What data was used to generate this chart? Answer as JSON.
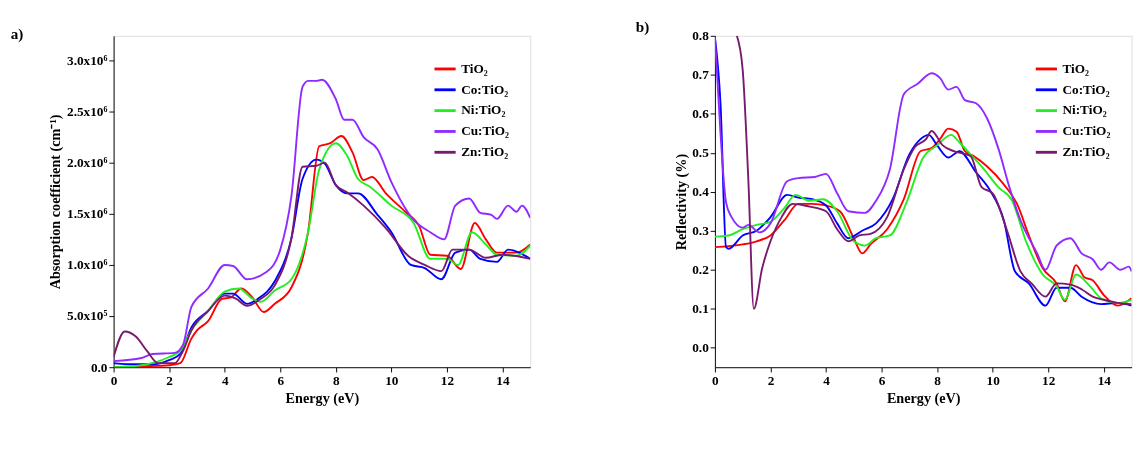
{
  "chart_data": [
    {
      "type": "line",
      "title": "a)",
      "xlabel": "Energy (eV)",
      "ylabel": "Absorption coefficient (cm⁻¹)",
      "xlim": [
        0,
        15
      ],
      "xticks": [
        0,
        2,
        4,
        6,
        8,
        10,
        12,
        14
      ],
      "ylim": [
        0,
        3240000
      ],
      "yticks": [
        {
          "value": 0,
          "label": "0.0"
        },
        {
          "value": 500000,
          "label": "5.0x10⁵"
        },
        {
          "value": 1000000,
          "label": "1.0x10⁶"
        },
        {
          "value": 1500000,
          "label": "1.5x10⁶"
        },
        {
          "value": 2000000,
          "label": "2.0x10⁶"
        },
        {
          "value": 2500000,
          "label": "2.5x10⁶"
        },
        {
          "value": 3000000,
          "label": "3.0x10⁶"
        }
      ],
      "grid": false,
      "legend": "top right",
      "line_style": "solid",
      "marker": "none",
      "series": [
        {
          "name": "TiO₂",
          "color": "#ff0000",
          "x": [
            0,
            1,
            2,
            2.4,
            2.8,
            3.0,
            3.4,
            3.9,
            4.2,
            4.6,
            5.0,
            5.4,
            5.8,
            6.4,
            7.0,
            7.4,
            7.8,
            8.2,
            8.6,
            9.0,
            9.3,
            9.8,
            10.5,
            11.0,
            11.4,
            12.0,
            12.5,
            13.0,
            13.4,
            13.8,
            14.5,
            15
          ],
          "values": [
            0,
            10000,
            20000,
            40000,
            280000,
            360000,
            450000,
            670000,
            680000,
            770000,
            680000,
            540000,
            620000,
            780000,
            1320000,
            2160000,
            2190000,
            2260000,
            2100000,
            1830000,
            1860000,
            1700000,
            1520000,
            1380000,
            1100000,
            1090000,
            960000,
            1410000,
            1250000,
            1120000,
            1120000,
            1200000
          ]
        },
        {
          "name": "Co:TiO₂",
          "color": "#0000ff",
          "x": [
            0,
            0.5,
            1.5,
            2.0,
            2.4,
            2.8,
            3.4,
            4.0,
            4.3,
            4.8,
            5.2,
            5.8,
            6.4,
            6.8,
            7.3,
            7.6,
            8.0,
            8.4,
            8.8,
            9.5,
            10.0,
            10.7,
            11.2,
            11.8,
            12.3,
            12.8,
            13.2,
            13.8,
            14.2,
            15
          ],
          "values": [
            40000,
            30000,
            30000,
            70000,
            130000,
            390000,
            550000,
            720000,
            720000,
            620000,
            670000,
            840000,
            1260000,
            1840000,
            2030000,
            1990000,
            1780000,
            1700000,
            1700000,
            1490000,
            1320000,
            1000000,
            970000,
            860000,
            1120000,
            1150000,
            1060000,
            1030000,
            1150000,
            1060000
          ]
        },
        {
          "name": "Ni:TiO₂",
          "color": "#22ee22",
          "x": [
            0,
            1,
            2,
            2.4,
            2.8,
            3.4,
            4.0,
            4.5,
            5.0,
            5.3,
            5.8,
            6.4,
            7.0,
            7.4,
            8.0,
            8.4,
            8.8,
            9.2,
            10.0,
            10.8,
            11.4,
            12.0,
            12.4,
            12.9,
            13.4,
            13.8,
            14.5,
            15
          ],
          "values": [
            0,
            20000,
            100000,
            160000,
            360000,
            550000,
            740000,
            770000,
            670000,
            640000,
            750000,
            860000,
            1320000,
            1930000,
            2190000,
            2070000,
            1840000,
            1770000,
            1580000,
            1410000,
            1060000,
            1060000,
            1000000,
            1320000,
            1200000,
            1100000,
            1090000,
            1190000
          ]
        },
        {
          "name": "Cu:TiO₂",
          "color": "#8f2bff",
          "x": [
            0,
            1.0,
            1.4,
            2.2,
            2.5,
            2.8,
            3.4,
            4.0,
            4.3,
            4.8,
            5.5,
            6.0,
            6.4,
            6.8,
            7.0,
            7.3,
            7.5,
            8.0,
            8.3,
            8.6,
            9.0,
            9.5,
            10.0,
            10.8,
            11.4,
            11.9,
            12.3,
            12.8,
            13.2,
            13.6,
            13.8,
            14.2,
            14.5,
            14.7,
            15
          ],
          "values": [
            60000,
            90000,
            130000,
            140000,
            220000,
            590000,
            770000,
            1000000,
            990000,
            860000,
            930000,
            1150000,
            1670000,
            2740000,
            2800000,
            2800000,
            2810000,
            2620000,
            2420000,
            2420000,
            2250000,
            2130000,
            1810000,
            1440000,
            1320000,
            1250000,
            1580000,
            1650000,
            1510000,
            1490000,
            1450000,
            1580000,
            1520000,
            1580000,
            1460000
          ]
        },
        {
          "name": "Zn:TiO₂",
          "color": "#7a1a6e",
          "x": [
            0,
            0.4,
            0.8,
            1.2,
            1.6,
            2.2,
            2.5,
            2.8,
            3.4,
            4.0,
            4.4,
            4.8,
            5.3,
            5.8,
            6.4,
            6.8,
            7.3,
            7.6,
            8.0,
            8.4,
            9.0,
            9.8,
            10.6,
            11.2,
            11.8,
            12.2,
            12.8,
            13.4,
            14.0,
            15
          ],
          "values": [
            100000,
            350000,
            300000,
            160000,
            40000,
            40000,
            160000,
            360000,
            550000,
            700000,
            670000,
            600000,
            670000,
            800000,
            1260000,
            1960000,
            1970000,
            2000000,
            1780000,
            1710000,
            1580000,
            1360000,
            1090000,
            1000000,
            940000,
            1150000,
            1150000,
            1070000,
            1100000,
            1060000
          ]
        }
      ]
    },
    {
      "type": "line",
      "title": "b)",
      "xlabel": "Energy (eV)",
      "ylabel": "Reflectivity (%)",
      "xlim": [
        0,
        15
      ],
      "xticks": [
        0,
        2,
        4,
        6,
        8,
        10,
        12,
        14
      ],
      "ylim": [
        -0.05,
        0.8
      ],
      "yticks": [
        {
          "value": 0,
          "label": "0.0"
        },
        0.1,
        0.2,
        0.3,
        0.4,
        0.5,
        0.6,
        0.7,
        0.8
      ],
      "grid": false,
      "legend": "top right",
      "line_style": "solid",
      "marker": "none",
      "series": [
        {
          "name": "TiO₂",
          "color": "#ff0000",
          "x": [
            0,
            1,
            1.5,
            2,
            2.5,
            3.0,
            3.5,
            4.0,
            4.5,
            5.0,
            5.3,
            5.6,
            6.2,
            6.8,
            7.4,
            7.8,
            8.1,
            8.4,
            8.7,
            9.0,
            9.3,
            9.8,
            10.4,
            10.9,
            11.3,
            11.8,
            12.3,
            12.6,
            13.0,
            13.3,
            13.6,
            14.0,
            14.5,
            15
          ],
          "values": [
            0.258,
            0.265,
            0.273,
            0.288,
            0.327,
            0.369,
            0.369,
            0.365,
            0.35,
            0.281,
            0.242,
            0.265,
            0.304,
            0.381,
            0.504,
            0.512,
            0.535,
            0.562,
            0.554,
            0.504,
            0.492,
            0.465,
            0.419,
            0.365,
            0.288,
            0.204,
            0.165,
            0.119,
            0.212,
            0.181,
            0.173,
            0.135,
            0.108,
            0.127
          ]
        },
        {
          "name": "Co:TiO₂",
          "color": "#0000ff",
          "x": [
            0,
            0.2,
            0.4,
            0.5,
            1.0,
            1.5,
            2.0,
            2.6,
            3.0,
            3.5,
            4.0,
            4.4,
            4.8,
            5.3,
            5.8,
            6.4,
            7.0,
            7.4,
            7.7,
            8.0,
            8.4,
            8.8,
            9.4,
            9.9,
            10.4,
            10.8,
            11.3,
            11.9,
            12.3,
            12.8,
            13.2,
            13.9,
            14.5,
            15
          ],
          "values": [
            0.796,
            0.627,
            0.258,
            0.254,
            0.288,
            0.3,
            0.335,
            0.392,
            0.385,
            0.381,
            0.365,
            0.319,
            0.281,
            0.3,
            0.319,
            0.381,
            0.496,
            0.535,
            0.546,
            0.519,
            0.488,
            0.504,
            0.45,
            0.404,
            0.327,
            0.196,
            0.165,
            0.108,
            0.154,
            0.154,
            0.131,
            0.112,
            0.115,
            0.108
          ]
        },
        {
          "name": "Ni:TiO₂",
          "color": "#22ee22",
          "x": [
            0,
            0.5,
            1.0,
            1.5,
            2.0,
            2.5,
            2.9,
            3.4,
            3.9,
            4.4,
            5.0,
            5.4,
            5.8,
            6.3,
            6.9,
            7.5,
            8.0,
            8.5,
            8.8,
            9.2,
            9.6,
            10.2,
            10.7,
            11.2,
            11.8,
            12.3,
            12.6,
            13.0,
            13.5,
            13.9,
            14.5,
            15
          ],
          "values": [
            0.285,
            0.288,
            0.304,
            0.315,
            0.323,
            0.358,
            0.392,
            0.377,
            0.381,
            0.35,
            0.273,
            0.262,
            0.281,
            0.288,
            0.373,
            0.488,
            0.519,
            0.546,
            0.527,
            0.496,
            0.465,
            0.412,
            0.377,
            0.273,
            0.188,
            0.158,
            0.123,
            0.188,
            0.158,
            0.127,
            0.115,
            0.123
          ]
        },
        {
          "name": "Cu:TiO₂",
          "color": "#8f2bff",
          "x": [
            0,
            0.2,
            0.4,
            0.6,
            1.0,
            1.2,
            1.6,
            2.0,
            2.6,
            3.0,
            3.6,
            4.0,
            4.4,
            4.8,
            5.4,
            5.8,
            6.3,
            6.8,
            7.3,
            7.8,
            8.1,
            8.4,
            8.7,
            9.0,
            9.4,
            9.8,
            10.2,
            10.6,
            11.0,
            11.6,
            11.9,
            12.3,
            12.8,
            13.2,
            13.6,
            13.9,
            14.2,
            14.6,
            14.9,
            15
          ],
          "values": [
            0.796,
            0.55,
            0.373,
            0.335,
            0.308,
            0.315,
            0.296,
            0.319,
            0.427,
            0.435,
            0.438,
            0.446,
            0.396,
            0.35,
            0.346,
            0.377,
            0.458,
            0.65,
            0.677,
            0.704,
            0.692,
            0.662,
            0.669,
            0.635,
            0.627,
            0.588,
            0.512,
            0.412,
            0.327,
            0.242,
            0.2,
            0.262,
            0.281,
            0.242,
            0.227,
            0.2,
            0.219,
            0.2,
            0.208,
            0.196
          ]
        },
        {
          "name": "Zn:TiO₂",
          "color": "#7a1a6e",
          "x": [
            0.79,
            1.0,
            1.2,
            1.4,
            1.7,
            2.0,
            2.4,
            2.8,
            3.4,
            4.0,
            4.4,
            4.8,
            5.2,
            5.6,
            6.2,
            6.8,
            7.2,
            7.6,
            7.8,
            8.2,
            8.6,
            9.2,
            9.6,
            10.0,
            10.5,
            11.0,
            11.4,
            11.9,
            12.3,
            12.8,
            13.2,
            13.6,
            14.0,
            14.5,
            15
          ],
          "values": [
            0.8,
            0.712,
            0.435,
            0.1,
            0.204,
            0.273,
            0.335,
            0.369,
            0.362,
            0.35,
            0.304,
            0.273,
            0.288,
            0.292,
            0.335,
            0.458,
            0.515,
            0.535,
            0.556,
            0.519,
            0.504,
            0.492,
            0.412,
            0.396,
            0.304,
            0.196,
            0.165,
            0.131,
            0.165,
            0.162,
            0.15,
            0.131,
            0.123,
            0.115,
            0.112
          ]
        }
      ]
    }
  ]
}
